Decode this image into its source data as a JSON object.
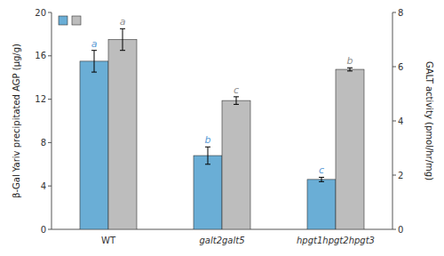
{
  "chart_data": {
    "type": "bar",
    "categories": [
      "WT",
      "galt2galt5",
      "hpgt1hpgt2hpgt3"
    ],
    "series": [
      {
        "color": "#6aaed6",
        "values": [
          15.5,
          6.8,
          4.6
        ],
        "errors": [
          1.0,
          0.8,
          0.2
        ],
        "significance_labels": [
          "a",
          "b",
          "c"
        ],
        "label_color": "#5b9bd5"
      },
      {
        "color": "#bdbdbd",
        "axis": "y2",
        "values": [
          7.0,
          4.75,
          5.9
        ],
        "errors": [
          0.4,
          0.14,
          0.06
        ],
        "significance_labels": [
          "a",
          "c",
          "b"
        ],
        "label_color": "#909090"
      }
    ],
    "y_label": "β-Gal Yariv precipitated AGP (μg/g)",
    "y2_label": "GALT activity (pmol/hr/mg)",
    "ylim": [
      0,
      20
    ],
    "yticks": [
      0,
      4,
      8,
      12,
      16,
      20
    ],
    "y2lim": [
      0,
      8
    ],
    "y2ticks": [
      0,
      2,
      4,
      6,
      8
    ],
    "legend": "upper left",
    "grid": false
  }
}
